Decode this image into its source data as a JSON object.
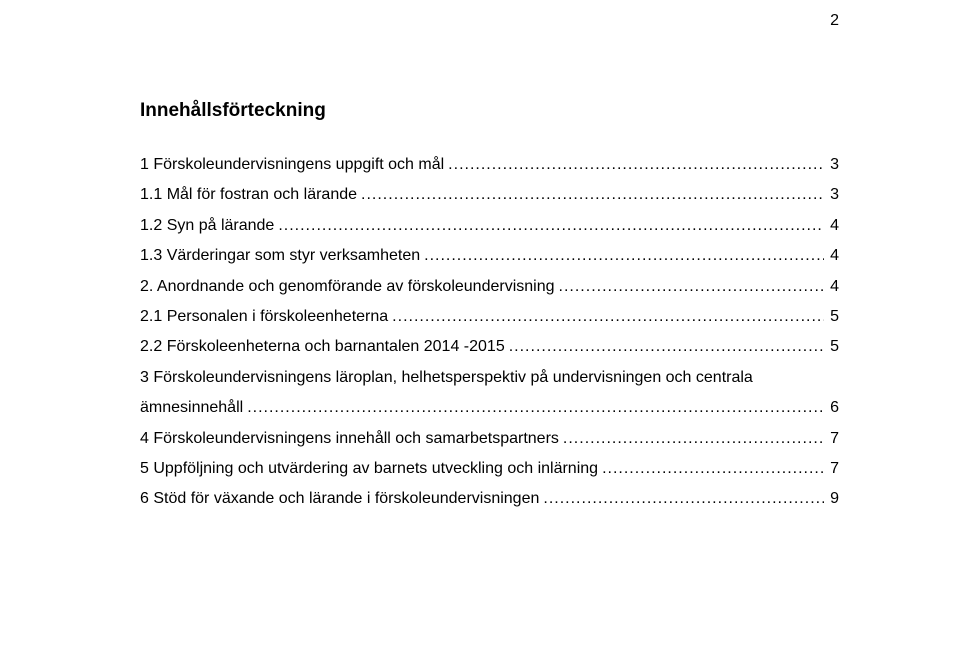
{
  "page_number_top": "2",
  "toc_title": "Innehållsförteckning",
  "leader_char": ".",
  "entries": [
    {
      "label": "1 Förskoleundervisningens uppgift och mål",
      "page": "3",
      "level": 1
    },
    {
      "label": "1.1 Mål för fostran och lärande",
      "page": "3",
      "level": 1
    },
    {
      "label": "1.2 Syn på lärande",
      "page": "4",
      "level": 1
    },
    {
      "label": "1.3 Värderingar som styr verksamheten",
      "page": "4",
      "level": 1
    },
    {
      "label": "2. Anordnande och genomförande av förskoleundervisning",
      "page": "4",
      "level": 1
    },
    {
      "label": "2.1 Personalen i förskoleenheterna",
      "page": "5",
      "level": 1
    },
    {
      "label": "2.2 Förskoleenheterna och barnantalen 2014 -2015",
      "page": "5",
      "level": 1
    },
    {
      "label_line1": "3 Förskoleundervisningens läroplan, helhetsperspektiv på undervisningen och centrala",
      "label_line2": "ämnesinnehåll",
      "page": "6",
      "level": 1,
      "wrap": true
    },
    {
      "label": "4 Förskoleundervisningens innehåll och samarbetspartners",
      "page": "7",
      "level": 1
    },
    {
      "label": "5 Uppföljning och utvärdering av barnets utveckling och inlärning",
      "page": "7",
      "level": 1
    },
    {
      "label": "6 Stöd för växande och lärande i förskoleundervisningen",
      "page": "9",
      "level": 1
    }
  ]
}
